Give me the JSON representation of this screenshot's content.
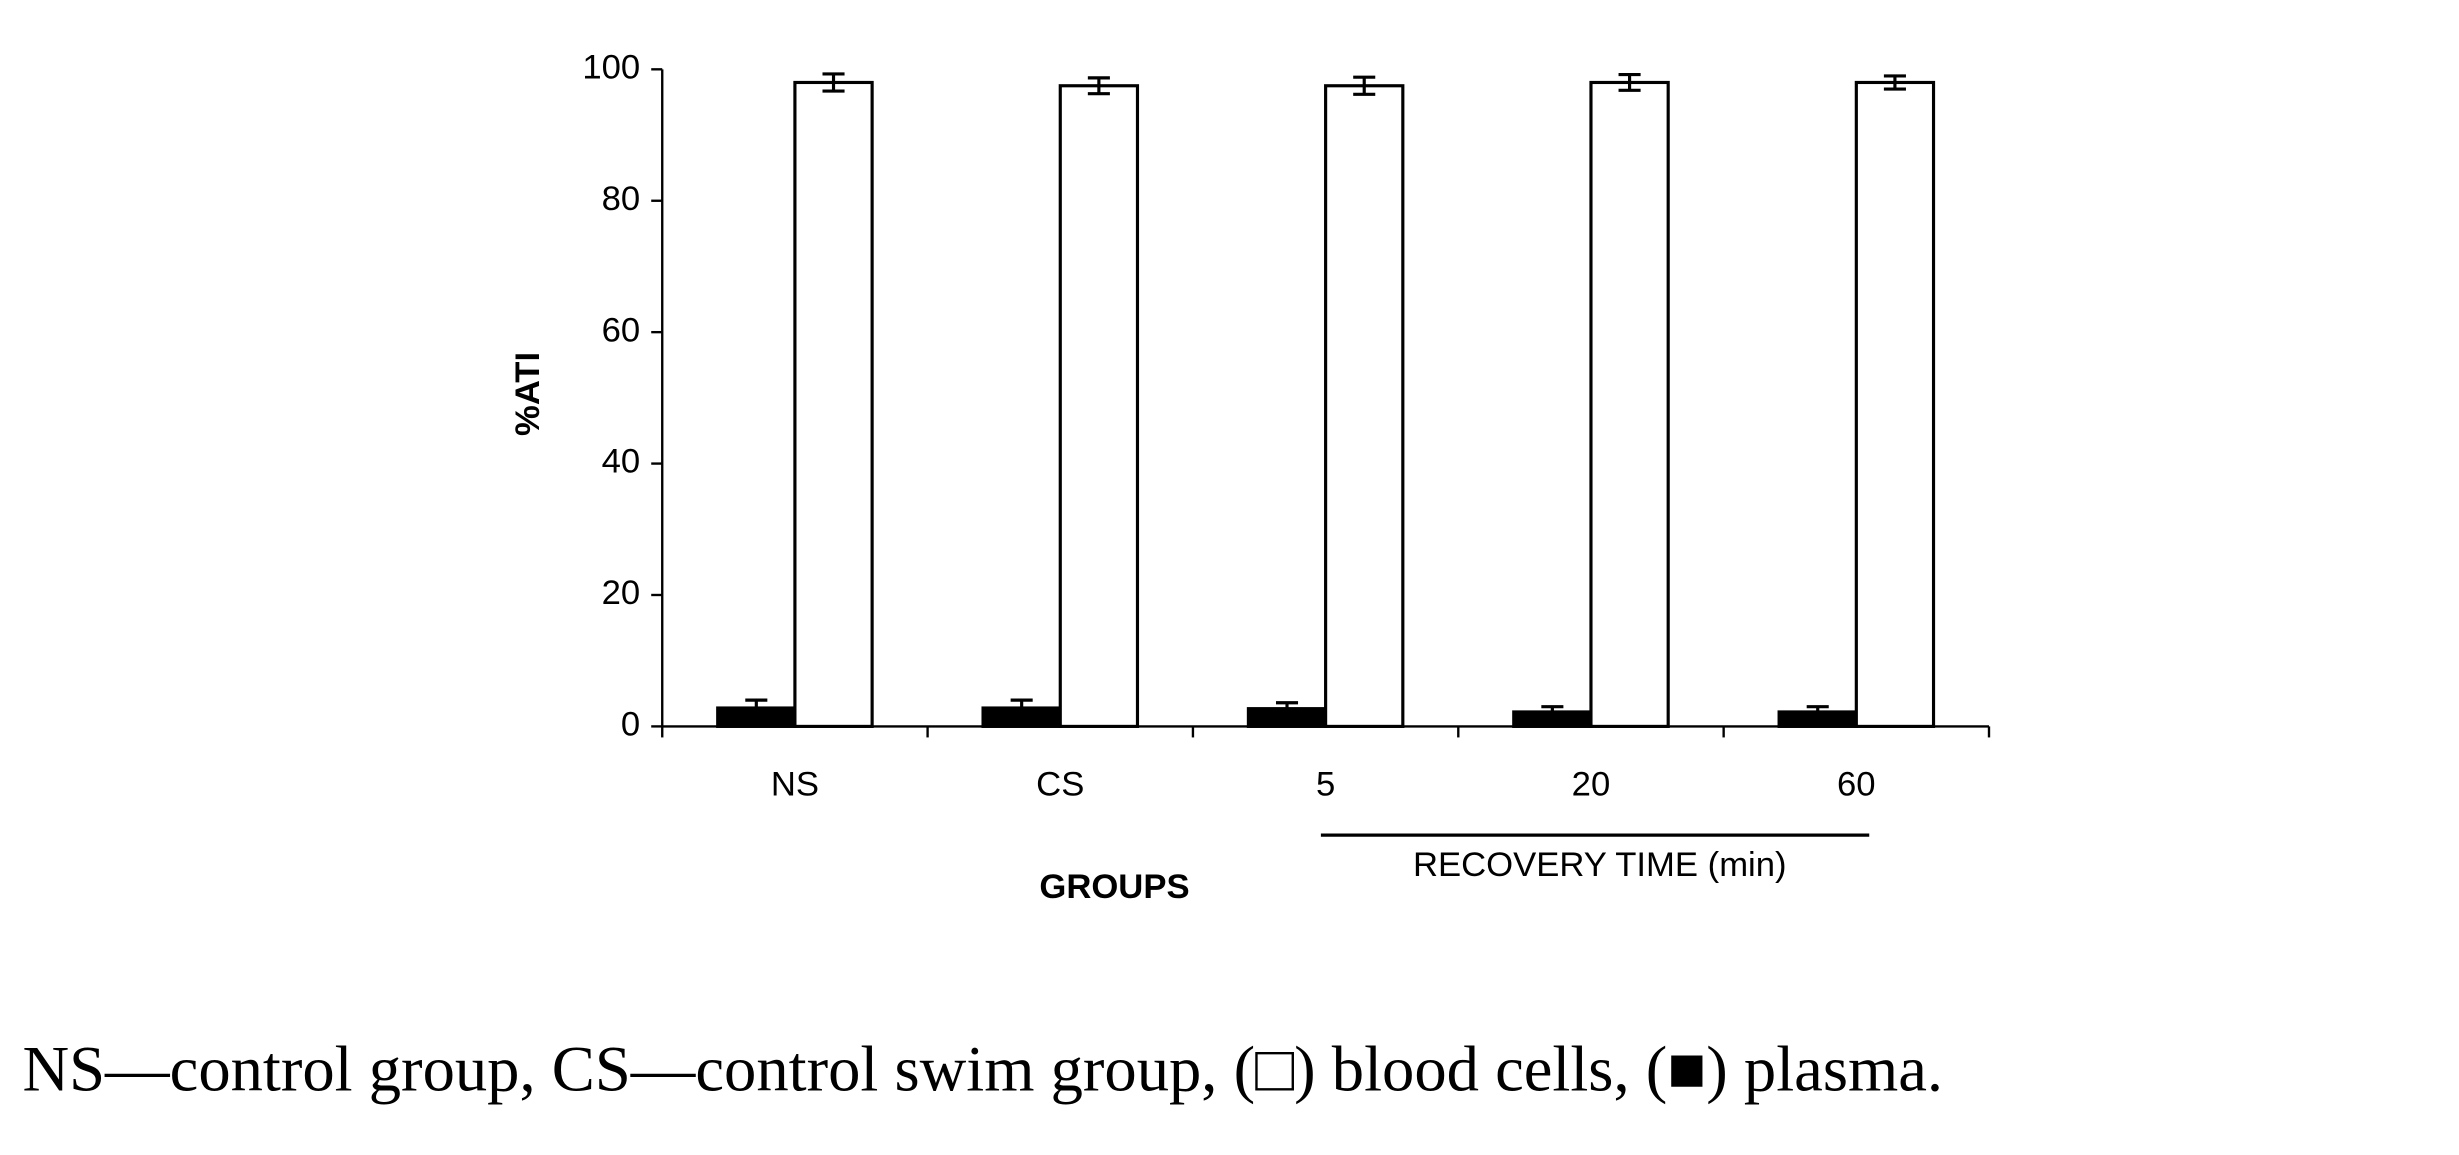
{
  "chart_data": {
    "type": "bar",
    "y_label": "%ATI",
    "x_label": "GROUPS",
    "annotation": "RECOVERY TIME (min)",
    "categories": [
      "NS",
      "CS",
      "5",
      "20",
      "60"
    ],
    "series": [
      {
        "name": "plasma",
        "color": "#000000",
        "values": [
          2.8,
          2.8,
          2.7,
          2.2,
          2.2
        ],
        "errors": [
          1.2,
          1.2,
          0.9,
          0.8,
          0.8
        ]
      },
      {
        "name": "blood cells",
        "color": "#ffffff",
        "values": [
          98,
          97.5,
          97.5,
          98,
          98
        ],
        "errors": [
          1.3,
          1.2,
          1.3,
          1.2,
          1.0
        ]
      }
    ],
    "ylim": [
      0,
      100
    ],
    "yticks": [
      0,
      20,
      40,
      60,
      80,
      100
    ],
    "grid": false,
    "caption": [
      "NS—control group, CS—control swim group, (□) ",
      ", (■) ",
      "."
    ]
  }
}
